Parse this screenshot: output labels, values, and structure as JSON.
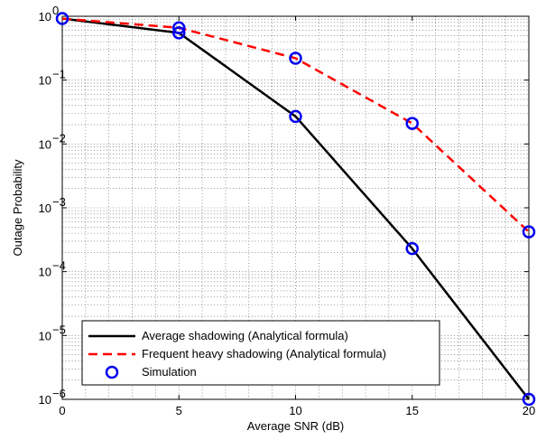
{
  "chart_data": {
    "type": "line",
    "xlabel": "Average SNR (dB)",
    "ylabel": "Outage Probability",
    "xlim": [
      0,
      20
    ],
    "ylim": [
      1e-06,
      1
    ],
    "yscale": "log",
    "grid": true,
    "legend_position": "bottom-left",
    "x_ticks": [
      "0",
      "5",
      "10",
      "15",
      "20"
    ],
    "y_tick_mantissa": "10",
    "y_tick_exponents": [
      "−6",
      "−5",
      "−4",
      "−3",
      "−2",
      "−1",
      "0"
    ],
    "series": [
      {
        "name": "Average shadowing (Analytical formula)",
        "color": "#000000",
        "style": "solid",
        "x": [
          0,
          5,
          10,
          15,
          20
        ],
        "y": [
          0.92,
          0.55,
          0.027,
          0.00023,
          1e-06
        ]
      },
      {
        "name": "Frequent heavy shadowing (Analytical formula)",
        "color": "#ff0000",
        "style": "dashed",
        "x": [
          0,
          5,
          10,
          15,
          20
        ],
        "y": [
          0.92,
          0.66,
          0.22,
          0.021,
          0.00042
        ]
      },
      {
        "name": "Simulation",
        "color": "#0000ee",
        "style": "markers",
        "points": [
          [
            0,
            0.92
          ],
          [
            5,
            0.55
          ],
          [
            5,
            0.66
          ],
          [
            10,
            0.22
          ],
          [
            10,
            0.027
          ],
          [
            15,
            0.021
          ],
          [
            15,
            0.00023
          ],
          [
            20,
            0.00042
          ],
          [
            20,
            1e-06
          ]
        ]
      }
    ]
  }
}
